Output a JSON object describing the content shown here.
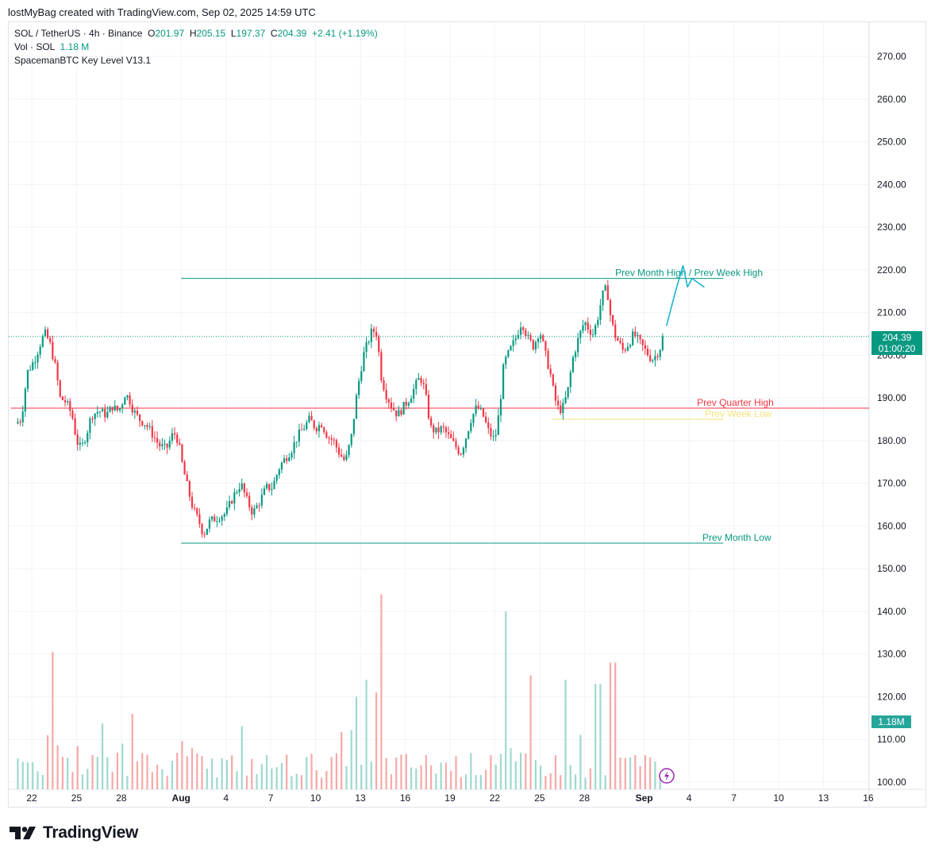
{
  "caption": "lostMyBag created with TradingView.com, Sep 02, 2025 14:59 UTC",
  "legend": {
    "symbol": "SOL / TetherUS · 4h · Binance",
    "o_label": "O",
    "o": "201.97",
    "h_label": "H",
    "h": "205.15",
    "l_label": "L",
    "l": "197.37",
    "c_label": "C",
    "c": "204.39",
    "change": "+2.41 (+1.19%)",
    "vol_label": "Vol · SOL",
    "vol": "1.18 M",
    "indicator": "SpacemanBTC Key Level V13.1"
  },
  "price_tag": {
    "price": "204.39",
    "countdown": "01:00:20"
  },
  "volume_tag": "1.18M",
  "brand": "TradingView",
  "colors": {
    "up": "#089981",
    "down": "#f23645",
    "vol_up": "#9fd8cf",
    "vol_down": "#f7a9a7",
    "level_month": "#089981",
    "level_quarter": "#f23645",
    "level_week_low": "#f5e27a",
    "projection": "#1ab3cf",
    "grid": "#f0f3fa"
  },
  "chart_data": {
    "type": "candlestick",
    "timeframe": "4h",
    "ylim": [
      100,
      275
    ],
    "y_ticks": [
      "270.00",
      "260.00",
      "250.00",
      "240.00",
      "230.00",
      "220.00",
      "210.00",
      "200.00",
      "190.00",
      "180.00",
      "170.00",
      "160.00",
      "150.00",
      "140.00",
      "130.00",
      "120.00",
      "110.00",
      "100.00"
    ],
    "x_ticks": [
      {
        "label": "22",
        "day": 0
      },
      {
        "label": "25",
        "day": 3
      },
      {
        "label": "28",
        "day": 6
      },
      {
        "label": "Aug",
        "day": 10
      },
      {
        "label": "4",
        "day": 13
      },
      {
        "label": "7",
        "day": 16
      },
      {
        "label": "10",
        "day": 19
      },
      {
        "label": "13",
        "day": 22
      },
      {
        "label": "16",
        "day": 25
      },
      {
        "label": "19",
        "day": 28
      },
      {
        "label": "22",
        "day": 31
      },
      {
        "label": "25",
        "day": 34
      },
      {
        "label": "28",
        "day": 37
      },
      {
        "label": "Sep",
        "day": 41
      },
      {
        "label": "4",
        "day": 44
      },
      {
        "label": "7",
        "day": 47
      },
      {
        "label": "10",
        "day": 50
      },
      {
        "label": "13",
        "day": 53
      },
      {
        "label": "16",
        "day": 56
      }
    ],
    "price_anchors": [
      [
        -1.1,
        184
      ],
      [
        -0.7,
        185
      ],
      [
        -0.3,
        196
      ],
      [
        0.2,
        199
      ],
      [
        0.7,
        204
      ],
      [
        0.9,
        205
      ],
      [
        1.2,
        203
      ],
      [
        1.6,
        197
      ],
      [
        1.9,
        190
      ],
      [
        2.3,
        189
      ],
      [
        2.7,
        186
      ],
      [
        3.0,
        180
      ],
      [
        3.3,
        178
      ],
      [
        3.7,
        182
      ],
      [
        4.0,
        186
      ],
      [
        4.5,
        187
      ],
      [
        5.0,
        186
      ],
      [
        5.4,
        188
      ],
      [
        5.7,
        187
      ],
      [
        6.0,
        188
      ],
      [
        6.2,
        191
      ],
      [
        6.5,
        190
      ],
      [
        6.8,
        187
      ],
      [
        7.2,
        185
      ],
      [
        7.6,
        184
      ],
      [
        8.0,
        182
      ],
      [
        8.5,
        179
      ],
      [
        9.0,
        178
      ],
      [
        9.5,
        182
      ],
      [
        9.8,
        180
      ],
      [
        10.1,
        174
      ],
      [
        10.5,
        168
      ],
      [
        10.8,
        164
      ],
      [
        11.2,
        161
      ],
      [
        11.5,
        158
      ],
      [
        11.9,
        161
      ],
      [
        12.4,
        162
      ],
      [
        13.0,
        163
      ],
      [
        13.5,
        167
      ],
      [
        14.0,
        170
      ],
      [
        14.4,
        166
      ],
      [
        14.8,
        163
      ],
      [
        15.3,
        166
      ],
      [
        15.7,
        169
      ],
      [
        16.1,
        169
      ],
      [
        16.6,
        174
      ],
      [
        17.0,
        176
      ],
      [
        17.4,
        178
      ],
      [
        17.8,
        181
      ],
      [
        18.2,
        183
      ],
      [
        18.6,
        185
      ],
      [
        19.0,
        183
      ],
      [
        19.4,
        184
      ],
      [
        19.8,
        181
      ],
      [
        20.2,
        180
      ],
      [
        20.6,
        177
      ],
      [
        21.0,
        175
      ],
      [
        21.4,
        181
      ],
      [
        21.8,
        192
      ],
      [
        22.2,
        200
      ],
      [
        22.5,
        203
      ],
      [
        22.8,
        206
      ],
      [
        23.1,
        205
      ],
      [
        23.4,
        195
      ],
      [
        23.7,
        191
      ],
      [
        24.1,
        188
      ],
      [
        24.5,
        186
      ],
      [
        24.9,
        188
      ],
      [
        25.3,
        190
      ],
      [
        25.7,
        193
      ],
      [
        26.0,
        195
      ],
      [
        26.3,
        192
      ],
      [
        26.7,
        183
      ],
      [
        27.1,
        182
      ],
      [
        27.5,
        183
      ],
      [
        27.9,
        181
      ],
      [
        28.3,
        179
      ],
      [
        28.7,
        177
      ],
      [
        29.0,
        180
      ],
      [
        29.4,
        185
      ],
      [
        29.8,
        188
      ],
      [
        30.2,
        186
      ],
      [
        30.6,
        182
      ],
      [
        31.0,
        180
      ],
      [
        31.3,
        187
      ],
      [
        31.6,
        198
      ],
      [
        32.0,
        201
      ],
      [
        32.4,
        204
      ],
      [
        32.8,
        208
      ],
      [
        33.2,
        204
      ],
      [
        33.6,
        202
      ],
      [
        34.0,
        206
      ],
      [
        34.4,
        200
      ],
      [
        34.7,
        196
      ],
      [
        35.0,
        190
      ],
      [
        35.3,
        187
      ],
      [
        35.6,
        188
      ],
      [
        35.9,
        192
      ],
      [
        36.2,
        199
      ],
      [
        36.6,
        204
      ],
      [
        37.0,
        208
      ],
      [
        37.3,
        206
      ],
      [
        37.6,
        205
      ],
      [
        37.9,
        209
      ],
      [
        38.2,
        214
      ],
      [
        38.5,
        216
      ],
      [
        38.7,
        210
      ],
      [
        39.0,
        205
      ],
      [
        39.3,
        203
      ],
      [
        39.6,
        201
      ],
      [
        40.0,
        203
      ],
      [
        40.3,
        205
      ],
      [
        40.7,
        203
      ],
      [
        41.1,
        201
      ],
      [
        41.5,
        199
      ],
      [
        41.8,
        200
      ],
      [
        42.1,
        202
      ],
      [
        42.3,
        204.39
      ]
    ],
    "volume_spikes": [
      [
        1.5,
        30.5
      ],
      [
        6.6,
        16
      ],
      [
        21.7,
        20
      ],
      [
        22.4,
        24
      ],
      [
        23.0,
        21
      ],
      [
        23.5,
        44
      ],
      [
        31.7,
        40
      ],
      [
        33.5,
        25
      ],
      [
        35.6,
        24
      ],
      [
        37.9,
        23
      ],
      [
        38.9,
        28
      ],
      [
        42.4,
        15
      ]
    ],
    "levels": [
      {
        "label": "Prev Month High / Prev Week High",
        "price": 218,
        "from_day": 10,
        "to_day": 46.3,
        "label_day": 44.0
      },
      {
        "label": "Prev Quarter High",
        "price": 187.6,
        "from_day": -1.4,
        "to_day": 56.5,
        "label_day": 47.1
      },
      {
        "label": "Prev Week Low",
        "price": 185,
        "from_day": 34.8,
        "to_day": 46.3,
        "label_day": 47.3
      },
      {
        "label": "Prev Month Low",
        "price": 156,
        "from_day": 10,
        "to_day": 46.3,
        "label_day": 47.2
      }
    ],
    "projection": [
      [
        42.5,
        207
      ],
      [
        43.1,
        215
      ],
      [
        43.6,
        221
      ],
      [
        43.9,
        216
      ],
      [
        44.2,
        218
      ],
      [
        44.6,
        217
      ],
      [
        45.0,
        216
      ]
    ]
  }
}
